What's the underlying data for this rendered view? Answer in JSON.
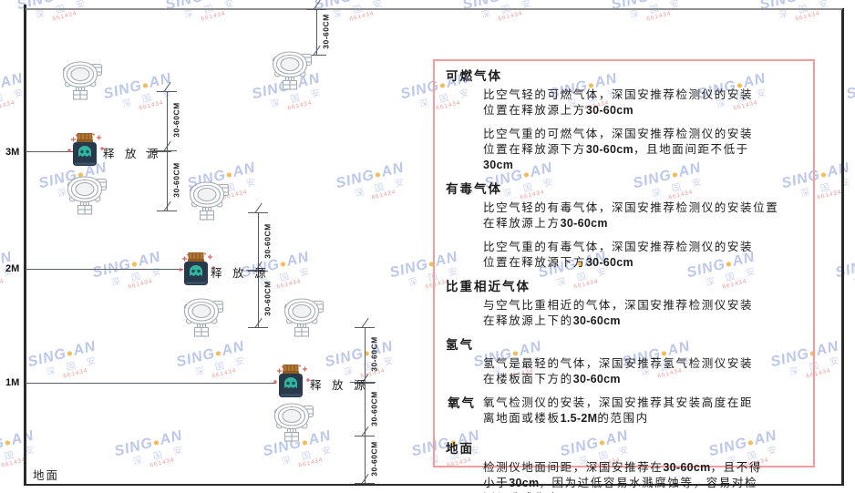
{
  "watermark": {
    "brand_left": "SING",
    "dot": "●",
    "brand_right": "AN",
    "sub": "深 国 安",
    "red_line": "661434"
  },
  "diagram": {
    "heights": [
      {
        "label": "3M"
      },
      {
        "label": "2M"
      },
      {
        "label": "1M"
      }
    ],
    "ground_label": "地面",
    "source_label": "释 放 源",
    "dim_label": "30-60CM"
  },
  "panel": {
    "sections": [
      {
        "heading": "可燃气体",
        "paras": [
          {
            "lines": [
              "比空气轻的可燃气体，深国安推荐检测仪的安装",
              "位置在释放源上方30-60cm"
            ]
          },
          {
            "lines": [
              "比空气重的可燃气体，深国安推荐检测仪的安装",
              "位置在释放源下方30-60cm，且地面间距不低于",
              "30cm"
            ]
          }
        ]
      },
      {
        "heading": "有毒气体",
        "paras": [
          {
            "lines": [
              "比空气轻的有毒气体，深国安推荐检测仪的安装位置",
              "在释放源上方30-60cm"
            ]
          },
          {
            "lines": [
              "比空气重的有毒气体，深国安推荐检测仪的安装",
              "位置在释放源下方30-60cm"
            ]
          }
        ]
      },
      {
        "heading": "比重相近气体",
        "paras": [
          {
            "lines": [
              "与空气比重相近的气体，深国安推荐检测仪安装",
              "在释放源上下的30-60cm"
            ]
          }
        ]
      },
      {
        "heading": "氢气",
        "paras": [
          {
            "lines": [
              "氢气是最轻的气体，深国安推荐氢气检测仪安装",
              "在楼板面下方的30-60cm"
            ]
          }
        ]
      },
      {
        "heading": "氧气",
        "inline": true,
        "paras": [
          {
            "lines": [
              "氧气检测仪的安装，深国安推荐其安装高度在距",
              "离地面或楼板1.5-2M的范围内"
            ]
          }
        ]
      },
      {
        "heading": "地面",
        "gap_top": true,
        "paras": [
          {
            "lines": [
              "检测仪地面间距，深国安推荐在30-60cm，且不得",
              "小于30cm，因为过低容易水溅腐蚀等，容易对检",
              "测仪造成伤害"
            ]
          }
        ]
      }
    ]
  }
}
